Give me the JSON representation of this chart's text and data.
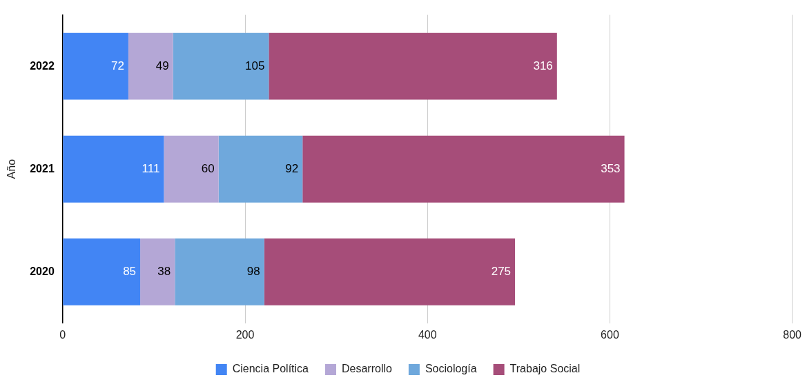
{
  "chart_data": {
    "type": "bar",
    "orientation": "horizontal",
    "stacked": true,
    "ylabel": "Año",
    "categories": [
      "2022",
      "2021",
      "2020"
    ],
    "series": [
      {
        "name": "Ciencia Política",
        "color": "#4285f4",
        "values": [
          72,
          111,
          85
        ]
      },
      {
        "name": "Desarrollo",
        "color": "#b4a7d6",
        "values": [
          49,
          60,
          38
        ]
      },
      {
        "name": "Sociología",
        "color": "#6fa8dc",
        "values": [
          105,
          92,
          98
        ]
      },
      {
        "name": "Trabajo Social",
        "color": "#a64d79",
        "values": [
          316,
          353,
          275
        ]
      }
    ],
    "xlim": [
      0,
      800
    ],
    "xticks": [
      0,
      200,
      400,
      600,
      800
    ],
    "grid": "x",
    "legend": "bottom",
    "data_labels": true
  }
}
